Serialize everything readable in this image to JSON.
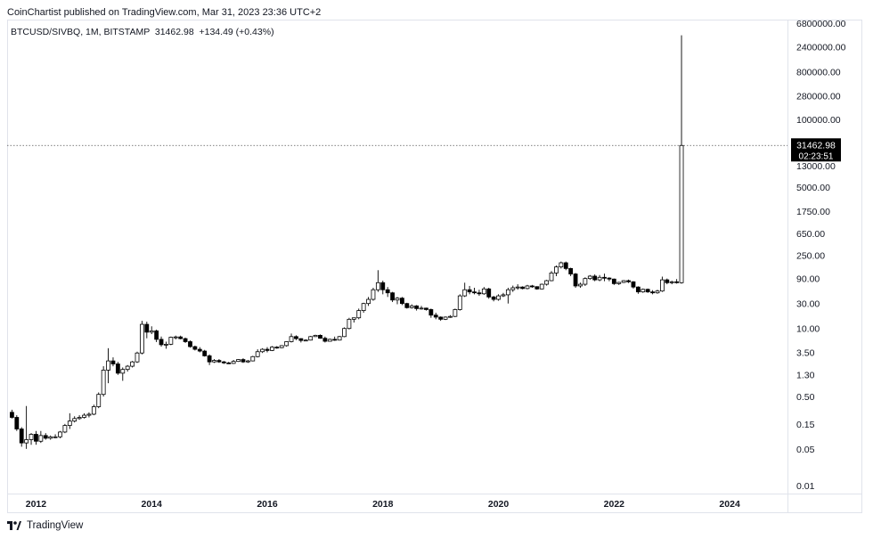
{
  "header": {
    "publisher": "CoinChartist published on TradingView.com, Mar 31, 2023 23:36 UTC+2",
    "symbol": "BTCUSD/SIVBQ",
    "interval": "1M",
    "exchange": "BITSTAMP",
    "last": "31462.98",
    "change": "+134.49 (+0.43%)"
  },
  "price_tag": {
    "price": "31462.98",
    "countdown": "02:23:51"
  },
  "footer": {
    "brand": "TradingView"
  },
  "colors": {
    "up_fill": "#ffffff",
    "down_fill": "#000000",
    "candle_border": "#000000",
    "grid": "#e0e3eb",
    "axis_text": "#131722",
    "tag_bg": "#000000",
    "tag_text": "#ffffff"
  },
  "chart_data": {
    "type": "candlestick",
    "title": "",
    "y_scale": "log",
    "y_ticks": [
      "6800000.00",
      "2400000.00",
      "800000.00",
      "280000.00",
      "100000.00",
      "13000.00",
      "5000.00",
      "1750.00",
      "650.00",
      "250.00",
      "90.00",
      "30.00",
      "10.00",
      "3.50",
      "1.30",
      "0.50",
      "0.15",
      "0.05",
      "0.01"
    ],
    "x_ticks": [
      "2012",
      "2014",
      "2016",
      "2018",
      "2020",
      "2022",
      "2024"
    ],
    "x_range": [
      "2011-07",
      "2025-01"
    ],
    "y_range": [
      0.007,
      8000000
    ],
    "last_price": 31462.98,
    "grid": false,
    "candles": [
      {
        "t": "2011-08",
        "o": 0.25,
        "h": 0.28,
        "l": 0.19,
        "c": 0.2
      },
      {
        "t": "2011-09",
        "o": 0.2,
        "h": 0.22,
        "l": 0.11,
        "c": 0.12
      },
      {
        "t": "2011-10",
        "o": 0.12,
        "h": 0.13,
        "l": 0.055,
        "c": 0.065
      },
      {
        "t": "2011-11",
        "o": 0.065,
        "h": 0.33,
        "l": 0.05,
        "c": 0.075
      },
      {
        "t": "2011-12",
        "o": 0.075,
        "h": 0.1,
        "l": 0.06,
        "c": 0.095
      },
      {
        "t": "2012-01",
        "o": 0.095,
        "h": 0.11,
        "l": 0.06,
        "c": 0.07
      },
      {
        "t": "2012-02",
        "o": 0.07,
        "h": 0.11,
        "l": 0.065,
        "c": 0.09
      },
      {
        "t": "2012-03",
        "o": 0.09,
        "h": 0.1,
        "l": 0.075,
        "c": 0.08
      },
      {
        "t": "2012-04",
        "o": 0.08,
        "h": 0.09,
        "l": 0.075,
        "c": 0.085
      },
      {
        "t": "2012-05",
        "o": 0.085,
        "h": 0.095,
        "l": 0.08,
        "c": 0.085
      },
      {
        "t": "2012-06",
        "o": 0.085,
        "h": 0.11,
        "l": 0.08,
        "c": 0.105
      },
      {
        "t": "2012-07",
        "o": 0.105,
        "h": 0.15,
        "l": 0.1,
        "c": 0.14
      },
      {
        "t": "2012-08",
        "o": 0.14,
        "h": 0.24,
        "l": 0.12,
        "c": 0.17
      },
      {
        "t": "2012-09",
        "o": 0.17,
        "h": 0.21,
        "l": 0.16,
        "c": 0.19
      },
      {
        "t": "2012-10",
        "o": 0.19,
        "h": 0.22,
        "l": 0.18,
        "c": 0.2
      },
      {
        "t": "2012-11",
        "o": 0.2,
        "h": 0.24,
        "l": 0.19,
        "c": 0.22
      },
      {
        "t": "2012-12",
        "o": 0.22,
        "h": 0.25,
        "l": 0.2,
        "c": 0.23
      },
      {
        "t": "2013-01",
        "o": 0.23,
        "h": 0.35,
        "l": 0.22,
        "c": 0.32
      },
      {
        "t": "2013-02",
        "o": 0.32,
        "h": 0.6,
        "l": 0.3,
        "c": 0.55
      },
      {
        "t": "2013-03",
        "o": 0.55,
        "h": 1.9,
        "l": 0.5,
        "c": 1.6
      },
      {
        "t": "2013-04",
        "o": 1.6,
        "h": 4.2,
        "l": 0.9,
        "c": 2.4
      },
      {
        "t": "2013-05",
        "o": 2.4,
        "h": 2.8,
        "l": 1.9,
        "c": 2.1
      },
      {
        "t": "2013-06",
        "o": 2.1,
        "h": 2.3,
        "l": 1.3,
        "c": 1.4
      },
      {
        "t": "2013-07",
        "o": 1.4,
        "h": 1.8,
        "l": 1.0,
        "c": 1.65
      },
      {
        "t": "2013-08",
        "o": 1.65,
        "h": 2.0,
        "l": 1.5,
        "c": 1.9
      },
      {
        "t": "2013-09",
        "o": 1.9,
        "h": 2.4,
        "l": 1.8,
        "c": 2.3
      },
      {
        "t": "2013-10",
        "o": 2.3,
        "h": 3.6,
        "l": 2.2,
        "c": 3.4
      },
      {
        "t": "2013-11",
        "o": 3.4,
        "h": 14.0,
        "l": 3.2,
        "c": 12.0
      },
      {
        "t": "2013-12",
        "o": 12.0,
        "h": 13.5,
        "l": 6.5,
        "c": 8.5
      },
      {
        "t": "2014-01",
        "o": 8.5,
        "h": 11.0,
        "l": 7.8,
        "c": 9.0
      },
      {
        "t": "2014-02",
        "o": 9.0,
        "h": 9.5,
        "l": 5.5,
        "c": 6.2
      },
      {
        "t": "2014-03",
        "o": 6.2,
        "h": 7.0,
        "l": 4.5,
        "c": 4.9
      },
      {
        "t": "2014-04",
        "o": 4.9,
        "h": 5.6,
        "l": 4.1,
        "c": 5.0
      },
      {
        "t": "2014-05",
        "o": 5.0,
        "h": 7.0,
        "l": 4.8,
        "c": 6.8
      },
      {
        "t": "2014-06",
        "o": 6.8,
        "h": 7.3,
        "l": 6.2,
        "c": 6.9
      },
      {
        "t": "2014-07",
        "o": 6.9,
        "h": 7.3,
        "l": 6.2,
        "c": 6.4
      },
      {
        "t": "2014-08",
        "o": 6.4,
        "h": 6.7,
        "l": 5.3,
        "c": 5.6
      },
      {
        "t": "2014-09",
        "o": 5.6,
        "h": 5.9,
        "l": 4.3,
        "c": 4.5
      },
      {
        "t": "2014-10",
        "o": 4.5,
        "h": 4.7,
        "l": 3.8,
        "c": 4.0
      },
      {
        "t": "2014-11",
        "o": 4.0,
        "h": 4.4,
        "l": 3.5,
        "c": 3.7
      },
      {
        "t": "2014-12",
        "o": 3.7,
        "h": 3.9,
        "l": 2.9,
        "c": 3.0
      },
      {
        "t": "2015-01",
        "o": 3.0,
        "h": 3.2,
        "l": 2.0,
        "c": 2.3
      },
      {
        "t": "2015-02",
        "o": 2.3,
        "h": 2.6,
        "l": 2.2,
        "c": 2.45
      },
      {
        "t": "2015-03",
        "o": 2.45,
        "h": 2.6,
        "l": 2.2,
        "c": 2.3
      },
      {
        "t": "2015-04",
        "o": 2.3,
        "h": 2.4,
        "l": 2.1,
        "c": 2.2
      },
      {
        "t": "2015-05",
        "o": 2.2,
        "h": 2.3,
        "l": 2.1,
        "c": 2.15
      },
      {
        "t": "2015-06",
        "o": 2.15,
        "h": 2.5,
        "l": 2.1,
        "c": 2.35
      },
      {
        "t": "2015-07",
        "o": 2.35,
        "h": 2.6,
        "l": 2.3,
        "c": 2.55
      },
      {
        "t": "2015-08",
        "o": 2.55,
        "h": 2.7,
        "l": 2.2,
        "c": 2.3
      },
      {
        "t": "2015-09",
        "o": 2.3,
        "h": 2.5,
        "l": 2.2,
        "c": 2.4
      },
      {
        "t": "2015-10",
        "o": 2.4,
        "h": 3.0,
        "l": 2.35,
        "c": 2.9
      },
      {
        "t": "2015-11",
        "o": 2.9,
        "h": 4.0,
        "l": 2.8,
        "c": 3.6
      },
      {
        "t": "2015-12",
        "o": 3.6,
        "h": 4.2,
        "l": 3.4,
        "c": 4.0
      },
      {
        "t": "2016-01",
        "o": 4.0,
        "h": 4.4,
        "l": 3.5,
        "c": 3.8
      },
      {
        "t": "2016-02",
        "o": 3.8,
        "h": 4.6,
        "l": 3.7,
        "c": 4.4
      },
      {
        "t": "2016-03",
        "o": 4.4,
        "h": 4.6,
        "l": 4.1,
        "c": 4.3
      },
      {
        "t": "2016-04",
        "o": 4.3,
        "h": 4.8,
        "l": 4.2,
        "c": 4.7
      },
      {
        "t": "2016-05",
        "o": 4.7,
        "h": 5.7,
        "l": 4.5,
        "c": 5.6
      },
      {
        "t": "2016-06",
        "o": 5.6,
        "h": 8.0,
        "l": 5.4,
        "c": 7.0
      },
      {
        "t": "2016-07",
        "o": 7.0,
        "h": 7.4,
        "l": 6.0,
        "c": 6.4
      },
      {
        "t": "2016-08",
        "o": 6.4,
        "h": 6.5,
        "l": 5.4,
        "c": 5.9
      },
      {
        "t": "2016-09",
        "o": 5.9,
        "h": 6.2,
        "l": 5.8,
        "c": 6.0
      },
      {
        "t": "2016-10",
        "o": 6.0,
        "h": 7.2,
        "l": 5.9,
        "c": 7.0
      },
      {
        "t": "2016-11",
        "o": 7.0,
        "h": 7.6,
        "l": 6.9,
        "c": 7.4
      },
      {
        "t": "2016-12",
        "o": 7.4,
        "h": 7.7,
        "l": 6.4,
        "c": 6.5
      },
      {
        "t": "2017-01",
        "o": 6.5,
        "h": 7.0,
        "l": 5.4,
        "c": 5.7
      },
      {
        "t": "2017-02",
        "o": 5.7,
        "h": 6.4,
        "l": 5.6,
        "c": 6.2
      },
      {
        "t": "2017-03",
        "o": 6.2,
        "h": 7.0,
        "l": 5.8,
        "c": 6.0
      },
      {
        "t": "2017-04",
        "o": 6.0,
        "h": 7.2,
        "l": 5.9,
        "c": 7.0
      },
      {
        "t": "2017-05",
        "o": 7.0,
        "h": 10.5,
        "l": 6.8,
        "c": 10.0
      },
      {
        "t": "2017-06",
        "o": 10.0,
        "h": 16.0,
        "l": 9.6,
        "c": 15.0
      },
      {
        "t": "2017-07",
        "o": 15.0,
        "h": 16.0,
        "l": 13.0,
        "c": 16.0
      },
      {
        "t": "2017-08",
        "o": 16.0,
        "h": 24.0,
        "l": 15.0,
        "c": 22.0
      },
      {
        "t": "2017-09",
        "o": 22.0,
        "h": 31.0,
        "l": 20.0,
        "c": 30.0
      },
      {
        "t": "2017-10",
        "o": 30.0,
        "h": 40.0,
        "l": 27.0,
        "c": 36.0
      },
      {
        "t": "2017-11",
        "o": 36.0,
        "h": 60.0,
        "l": 34.0,
        "c": 55.0
      },
      {
        "t": "2017-12",
        "o": 55.0,
        "h": 130.0,
        "l": 50.0,
        "c": 75.0
      },
      {
        "t": "2018-01",
        "o": 75.0,
        "h": 82.0,
        "l": 45.0,
        "c": 55.0
      },
      {
        "t": "2018-02",
        "o": 55.0,
        "h": 62.0,
        "l": 40.0,
        "c": 48.0
      },
      {
        "t": "2018-03",
        "o": 48.0,
        "h": 50.0,
        "l": 32.0,
        "c": 35.0
      },
      {
        "t": "2018-04",
        "o": 35.0,
        "h": 40.0,
        "l": 29.0,
        "c": 38.0
      },
      {
        "t": "2018-05",
        "o": 38.0,
        "h": 40.0,
        "l": 28.0,
        "c": 30.0
      },
      {
        "t": "2018-06",
        "o": 30.0,
        "h": 31.0,
        "l": 24.0,
        "c": 25.0
      },
      {
        "t": "2018-07",
        "o": 25.0,
        "h": 29.0,
        "l": 24.0,
        "c": 27.0
      },
      {
        "t": "2018-08",
        "o": 27.0,
        "h": 28.0,
        "l": 22.0,
        "c": 24.0
      },
      {
        "t": "2018-09",
        "o": 24.0,
        "h": 27.0,
        "l": 23.0,
        "c": 24.5
      },
      {
        "t": "2018-10",
        "o": 24.5,
        "h": 25.0,
        "l": 22.0,
        "c": 23.0
      },
      {
        "t": "2018-11",
        "o": 23.0,
        "h": 24.0,
        "l": 16.0,
        "c": 18.0
      },
      {
        "t": "2018-12",
        "o": 18.0,
        "h": 20.0,
        "l": 15.0,
        "c": 16.5
      },
      {
        "t": "2019-01",
        "o": 16.5,
        "h": 17.0,
        "l": 14.0,
        "c": 15.0
      },
      {
        "t": "2019-02",
        "o": 15.0,
        "h": 17.0,
        "l": 14.5,
        "c": 16.5
      },
      {
        "t": "2019-03",
        "o": 16.5,
        "h": 18.0,
        "l": 16.0,
        "c": 17.0
      },
      {
        "t": "2019-04",
        "o": 17.0,
        "h": 24.0,
        "l": 16.5,
        "c": 23.0
      },
      {
        "t": "2019-05",
        "o": 23.0,
        "h": 45.0,
        "l": 22.0,
        "c": 42.0
      },
      {
        "t": "2019-06",
        "o": 42.0,
        "h": 75.0,
        "l": 40.0,
        "c": 55.0
      },
      {
        "t": "2019-07",
        "o": 55.0,
        "h": 65.0,
        "l": 45.0,
        "c": 50.0
      },
      {
        "t": "2019-08",
        "o": 50.0,
        "h": 60.0,
        "l": 45.0,
        "c": 48.0
      },
      {
        "t": "2019-09",
        "o": 48.0,
        "h": 55.0,
        "l": 42.0,
        "c": 46.0
      },
      {
        "t": "2019-10",
        "o": 46.0,
        "h": 62.0,
        "l": 44.0,
        "c": 57.0
      },
      {
        "t": "2019-11",
        "o": 57.0,
        "h": 60.0,
        "l": 37.0,
        "c": 40.0
      },
      {
        "t": "2019-12",
        "o": 40.0,
        "h": 42.0,
        "l": 33.0,
        "c": 36.0
      },
      {
        "t": "2020-01",
        "o": 36.0,
        "h": 45.0,
        "l": 34.0,
        "c": 42.0
      },
      {
        "t": "2020-02",
        "o": 42.0,
        "h": 48.0,
        "l": 40.0,
        "c": 44.0
      },
      {
        "t": "2020-03",
        "o": 44.0,
        "h": 60.0,
        "l": 30.0,
        "c": 55.0
      },
      {
        "t": "2020-04",
        "o": 55.0,
        "h": 66.0,
        "l": 50.0,
        "c": 60.0
      },
      {
        "t": "2020-05",
        "o": 60.0,
        "h": 70.0,
        "l": 55.0,
        "c": 62.0
      },
      {
        "t": "2020-06",
        "o": 62.0,
        "h": 64.0,
        "l": 56.0,
        "c": 58.0
      },
      {
        "t": "2020-07",
        "o": 58.0,
        "h": 68.0,
        "l": 56.0,
        "c": 65.0
      },
      {
        "t": "2020-08",
        "o": 65.0,
        "h": 68.0,
        "l": 60.0,
        "c": 63.0
      },
      {
        "t": "2020-09",
        "o": 63.0,
        "h": 64.0,
        "l": 55.0,
        "c": 57.0
      },
      {
        "t": "2020-10",
        "o": 57.0,
        "h": 72.0,
        "l": 56.0,
        "c": 70.0
      },
      {
        "t": "2020-11",
        "o": 70.0,
        "h": 85.0,
        "l": 66.0,
        "c": 82.0
      },
      {
        "t": "2020-12",
        "o": 82.0,
        "h": 125.0,
        "l": 80.0,
        "c": 115.0
      },
      {
        "t": "2021-01",
        "o": 115.0,
        "h": 160.0,
        "l": 100.0,
        "c": 150.0
      },
      {
        "t": "2021-02",
        "o": 150.0,
        "h": 190.0,
        "l": 140.0,
        "c": 180.0
      },
      {
        "t": "2021-03",
        "o": 180.0,
        "h": 190.0,
        "l": 130.0,
        "c": 140.0
      },
      {
        "t": "2021-04",
        "o": 140.0,
        "h": 145.0,
        "l": 100.0,
        "c": 110.0
      },
      {
        "t": "2021-05",
        "o": 110.0,
        "h": 115.0,
        "l": 60.0,
        "c": 65.0
      },
      {
        "t": "2021-06",
        "o": 65.0,
        "h": 75.0,
        "l": 60.0,
        "c": 70.0
      },
      {
        "t": "2021-07",
        "o": 70.0,
        "h": 95.0,
        "l": 65.0,
        "c": 90.0
      },
      {
        "t": "2021-08",
        "o": 90.0,
        "h": 105.0,
        "l": 85.0,
        "c": 100.0
      },
      {
        "t": "2021-09",
        "o": 100.0,
        "h": 108.0,
        "l": 80.0,
        "c": 85.0
      },
      {
        "t": "2021-10",
        "o": 85.0,
        "h": 105.0,
        "l": 80.0,
        "c": 95.0
      },
      {
        "t": "2021-11",
        "o": 95.0,
        "h": 112.0,
        "l": 80.0,
        "c": 92.0
      },
      {
        "t": "2021-12",
        "o": 92.0,
        "h": 95.0,
        "l": 80.0,
        "c": 88.0
      },
      {
        "t": "2022-01",
        "o": 88.0,
        "h": 90.0,
        "l": 68.0,
        "c": 72.0
      },
      {
        "t": "2022-02",
        "o": 72.0,
        "h": 78.0,
        "l": 68.0,
        "c": 76.0
      },
      {
        "t": "2022-03",
        "o": 76.0,
        "h": 84.0,
        "l": 74.0,
        "c": 82.0
      },
      {
        "t": "2022-04",
        "o": 82.0,
        "h": 86.0,
        "l": 74.0,
        "c": 78.0
      },
      {
        "t": "2022-05",
        "o": 78.0,
        "h": 80.0,
        "l": 58.0,
        "c": 62.0
      },
      {
        "t": "2022-06",
        "o": 62.0,
        "h": 64.0,
        "l": 46.0,
        "c": 50.0
      },
      {
        "t": "2022-07",
        "o": 50.0,
        "h": 58.0,
        "l": 48.0,
        "c": 56.0
      },
      {
        "t": "2022-08",
        "o": 56.0,
        "h": 58.0,
        "l": 48.0,
        "c": 50.0
      },
      {
        "t": "2022-09",
        "o": 50.0,
        "h": 54.0,
        "l": 45.0,
        "c": 48.0
      },
      {
        "t": "2022-10",
        "o": 48.0,
        "h": 55.0,
        "l": 46.0,
        "c": 52.0
      },
      {
        "t": "2022-11",
        "o": 52.0,
        "h": 98.0,
        "l": 50.0,
        "c": 85.0
      },
      {
        "t": "2022-12",
        "o": 85.0,
        "h": 90.0,
        "l": 70.0,
        "c": 75.0
      },
      {
        "t": "2023-01",
        "o": 75.0,
        "h": 82.0,
        "l": 70.0,
        "c": 78.0
      },
      {
        "t": "2023-02",
        "o": 78.0,
        "h": 88.0,
        "l": 72.0,
        "c": 75.0
      },
      {
        "t": "2023-03",
        "o": 75.0,
        "h": 4000000.0,
        "l": 72.0,
        "c": 31462.98
      }
    ]
  }
}
